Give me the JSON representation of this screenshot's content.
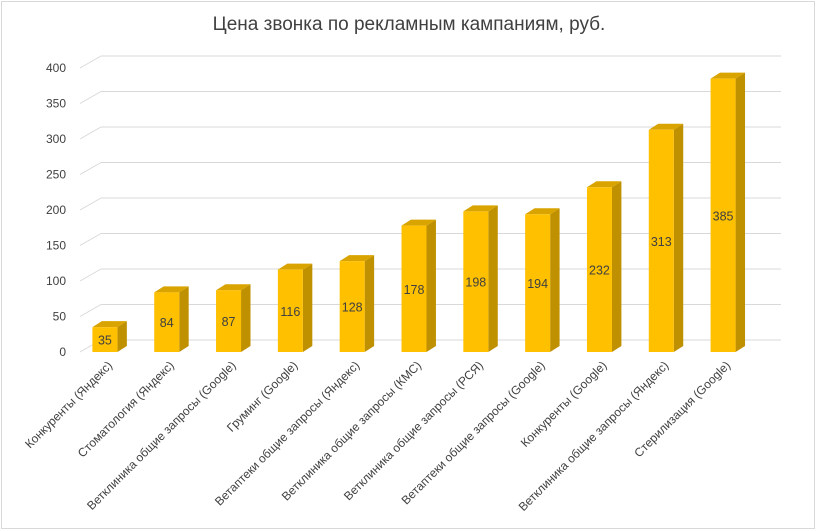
{
  "chart_data": {
    "type": "bar",
    "title": "Цена звонка по рекламным кампаниям,  руб.",
    "xlabel": "",
    "ylabel": "",
    "categories": [
      "Конкуренты (Яндекс)",
      "Стоматология (Яндекс)",
      "Ветклиника общие запросы (Google)",
      "Груминг (Google)",
      "Ветаптеки общие запросы (Яндекс)",
      "Ветклиника общие запросы (КМС)",
      "Ветклиника общие запросы (РСЯ)",
      "Ветаптеки общие запросы (Google)",
      "Конкуренты (Google)",
      "Ветклиника общие запросы (Яндекс)",
      "Стерилизация (Google)"
    ],
    "values": [
      35,
      84,
      87,
      116,
      128,
      178,
      198,
      194,
      232,
      313,
      385
    ],
    "ylim": [
      0,
      400
    ],
    "yticks": [
      0,
      50,
      100,
      150,
      200,
      250,
      300,
      350,
      400
    ],
    "grid": true,
    "legend": "none",
    "style": "3d-column",
    "colors": {
      "bar_front": "#FFC000",
      "bar_side": "#BF9000",
      "bar_top": "#D9A400",
      "grid": "#D9D9D9",
      "text": "#404040"
    }
  }
}
